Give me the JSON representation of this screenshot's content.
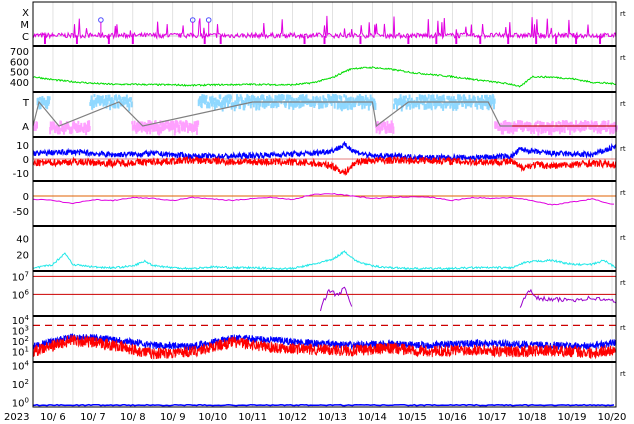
{
  "chart_data": {
    "type": "line",
    "x_labels": [
      "2023",
      "10/ 6",
      "10/ 7",
      "10/ 8",
      "10/ 9",
      "10/10",
      "10/11",
      "10/12",
      "10/13",
      "10/14",
      "10/15",
      "10/16",
      "10/17",
      "10/18",
      "10/19",
      "10/20"
    ],
    "x_range_days": [
      0,
      14.6
    ],
    "right_marker": "rt",
    "panels": [
      {
        "id": "xray",
        "ticks": [
          "X",
          "M",
          "C"
        ],
        "color": "#e000e0",
        "markers_days": [
          1.7,
          4.0,
          4.4
        ],
        "marker_color": "#5050ff"
      },
      {
        "id": "speed",
        "ticks": [
          "700",
          "600",
          "500",
          "400"
        ],
        "ylim": [
          300,
          750
        ],
        "color": "#00dd00",
        "series": [
          [
            0,
            450
          ],
          [
            0.5,
            420
          ],
          [
            1,
            400
          ],
          [
            1.5,
            385
          ],
          [
            2,
            375
          ],
          [
            2.5,
            375
          ],
          [
            3,
            372
          ],
          [
            3.5,
            370
          ],
          [
            4,
            365
          ],
          [
            4.5,
            370
          ],
          [
            5,
            372
          ],
          [
            5.5,
            375
          ],
          [
            6,
            372
          ],
          [
            6.5,
            370
          ],
          [
            7,
            390
          ],
          [
            7.5,
            440
          ],
          [
            7.8,
            500
          ],
          [
            8,
            530
          ],
          [
            8.5,
            540
          ],
          [
            9,
            520
          ],
          [
            9.5,
            490
          ],
          [
            10,
            470
          ],
          [
            10.5,
            450
          ],
          [
            11,
            425
          ],
          [
            11.5,
            400
          ],
          [
            12,
            375
          ],
          [
            12.2,
            350
          ],
          [
            12.5,
            450
          ],
          [
            13,
            445
          ],
          [
            13.5,
            430
          ],
          [
            14,
            395
          ],
          [
            14.6,
            380
          ]
        ]
      },
      {
        "id": "polarity",
        "ticks": [
          "T",
          "A"
        ],
        "colors": [
          "#8fd8ff",
          "#ffa0ff",
          "#808080"
        ],
        "steps": [
          [
            0,
            "A"
          ],
          [
            0.15,
            "T"
          ],
          [
            0.65,
            "A"
          ],
          [
            2.15,
            "T"
          ],
          [
            2.75,
            "A"
          ],
          [
            5.5,
            "T"
          ],
          [
            8.5,
            "T"
          ],
          [
            8.6,
            "A"
          ],
          [
            9.4,
            "T"
          ],
          [
            11.4,
            "T"
          ],
          [
            11.7,
            "A"
          ],
          [
            14.6,
            "A"
          ]
        ]
      },
      {
        "id": "imf",
        "ticks": [
          "10",
          "0",
          "-10"
        ],
        "ylim": [
          -15,
          15
        ],
        "series": [
          {
            "color": "#0000ff",
            "values": [
              [
                0,
                4
              ],
              [
                1,
                5
              ],
              [
                2,
                3
              ],
              [
                3,
                4
              ],
              [
                4,
                2
              ],
              [
                5,
                2
              ],
              [
                6,
                3
              ],
              [
                7,
                4
              ],
              [
                7.5,
                6
              ],
              [
                7.8,
                10
              ],
              [
                8.1,
                5
              ],
              [
                8.5,
                2
              ],
              [
                9,
                2
              ],
              [
                10,
                1
              ],
              [
                11,
                1
              ],
              [
                12,
                2
              ],
              [
                12.2,
                7
              ],
              [
                12.6,
                5
              ],
              [
                13,
                4
              ],
              [
                14,
                3
              ],
              [
                14.6,
                9
              ]
            ]
          },
          {
            "color": "#ff0000",
            "values": [
              [
                0,
                -3
              ],
              [
                1,
                -2
              ],
              [
                2,
                -3
              ],
              [
                3,
                -2
              ],
              [
                4,
                -1
              ],
              [
                5,
                -2
              ],
              [
                6,
                -2
              ],
              [
                7,
                -3
              ],
              [
                7.5,
                -5
              ],
              [
                7.8,
                -10
              ],
              [
                8.1,
                -2
              ],
              [
                8.5,
                -1
              ],
              [
                9,
                -1
              ],
              [
                10,
                -1
              ],
              [
                11,
                -2
              ],
              [
                12,
                -2
              ],
              [
                12.2,
                -6
              ],
              [
                12.6,
                -4
              ],
              [
                13,
                -5
              ],
              [
                14,
                -3
              ],
              [
                14.6,
                -4
              ]
            ]
          }
        ]
      },
      {
        "id": "angle",
        "ticks": [
          "0",
          "-50"
        ],
        "ylim": [
          -90,
          30
        ],
        "color": "#e000e0",
        "ref_color": "#e06000",
        "series": [
          [
            0,
            -10
          ],
          [
            0.5,
            -15
          ],
          [
            1,
            -25
          ],
          [
            1.5,
            -12
          ],
          [
            2,
            -15
          ],
          [
            2.5,
            -5
          ],
          [
            3,
            -8
          ],
          [
            3.5,
            -15
          ],
          [
            4,
            -5
          ],
          [
            4.5,
            -10
          ],
          [
            5,
            -15
          ],
          [
            5.5,
            -8
          ],
          [
            6,
            -5
          ],
          [
            6.5,
            -12
          ],
          [
            7,
            5
          ],
          [
            7.5,
            8
          ],
          [
            8,
            0
          ],
          [
            8.5,
            -8
          ],
          [
            9,
            -5
          ],
          [
            9.5,
            -2
          ],
          [
            10,
            -5
          ],
          [
            10.5,
            -15
          ],
          [
            11,
            -5
          ],
          [
            11.5,
            -8
          ],
          [
            12,
            -5
          ],
          [
            12.5,
            -15
          ],
          [
            13,
            -30
          ],
          [
            13.5,
            -20
          ],
          [
            14,
            -10
          ],
          [
            14.6,
            -30
          ]
        ]
      },
      {
        "id": "density",
        "ticks": [
          "40",
          "20"
        ],
        "ylim": [
          0,
          55
        ],
        "color": "#20e8e8",
        "series": [
          [
            0,
            3
          ],
          [
            0.5,
            8
          ],
          [
            0.8,
            22
          ],
          [
            1,
            8
          ],
          [
            1.5,
            5
          ],
          [
            2,
            4
          ],
          [
            2.5,
            6
          ],
          [
            2.8,
            12
          ],
          [
            3,
            7
          ],
          [
            3.5,
            4
          ],
          [
            4,
            3
          ],
          [
            4.5,
            5
          ],
          [
            5,
            4
          ],
          [
            5.5,
            4
          ],
          [
            6,
            3
          ],
          [
            6.5,
            3
          ],
          [
            7,
            8
          ],
          [
            7.5,
            14
          ],
          [
            7.8,
            24
          ],
          [
            8.1,
            12
          ],
          [
            8.5,
            6
          ],
          [
            9,
            4
          ],
          [
            9.5,
            3
          ],
          [
            10,
            3
          ],
          [
            10.5,
            3
          ],
          [
            11,
            4
          ],
          [
            11.5,
            4
          ],
          [
            12,
            4
          ],
          [
            12.3,
            10
          ],
          [
            12.6,
            12
          ],
          [
            13,
            13
          ],
          [
            13.5,
            8
          ],
          [
            14,
            8
          ],
          [
            14.3,
            13
          ],
          [
            14.6,
            4
          ]
        ]
      },
      {
        "id": "temperature",
        "ticks": [
          "10^7",
          "10^6"
        ],
        "ylim_log": [
          4.8,
          7.3
        ],
        "color": "#9900cc",
        "ref_color": "#cc0000",
        "series": [
          [
            7.2,
            5.2
          ],
          [
            7.4,
            6.2
          ],
          [
            7.6,
            6.0
          ],
          [
            7.8,
            6.3
          ],
          [
            8,
            5.3
          ],
          [
            12.2,
            5.3
          ],
          [
            12.4,
            6.3
          ],
          [
            12.6,
            5.8
          ],
          [
            13,
            5.7
          ],
          [
            13.5,
            5.7
          ],
          [
            14,
            5.8
          ],
          [
            14.6,
            5.6
          ]
        ]
      },
      {
        "id": "flux",
        "ticks": [
          "10^4",
          "10^3",
          "10^2",
          "10^1"
        ],
        "ylim_log": [
          0,
          4.4
        ],
        "ref_color": "#cc0000",
        "series": [
          {
            "color": "#0000ff",
            "values": [
              [
                0,
                1.5
              ],
              [
                1,
                2.4
              ],
              [
                2,
                2.2
              ],
              [
                3,
                1.6
              ],
              [
                4,
                1.5
              ],
              [
                5,
                2.3
              ],
              [
                6,
                2.1
              ],
              [
                7,
                1.8
              ],
              [
                8,
                1.6
              ],
              [
                9,
                1.7
              ],
              [
                10,
                1.6
              ],
              [
                11,
                1.8
              ],
              [
                12,
                1.7
              ],
              [
                13,
                1.6
              ],
              [
                14,
                1.5
              ],
              [
                14.6,
                1.9
              ]
            ]
          },
          {
            "color": "#ff0000",
            "values": [
              [
                0,
                1.0
              ],
              [
                1,
                2.1
              ],
              [
                2,
                1.6
              ],
              [
                3,
                0.8
              ],
              [
                4,
                1.0
              ],
              [
                5,
                1.9
              ],
              [
                6,
                1.4
              ],
              [
                7,
                1.2
              ],
              [
                8,
                1.1
              ],
              [
                9,
                1.3
              ],
              [
                10,
                1.0
              ],
              [
                11,
                1.2
              ],
              [
                12,
                1.0
              ],
              [
                13,
                1.1
              ],
              [
                14,
                0.9
              ],
              [
                14.6,
                1.2
              ]
            ]
          }
        ]
      },
      {
        "id": "electron",
        "ticks": [
          "10^4",
          "10^2",
          "10^0"
        ],
        "ylim_log": [
          -0.5,
          4.4
        ],
        "color": "#0000ff",
        "series": [
          [
            0,
            -0.3
          ],
          [
            14.6,
            -0.3
          ]
        ]
      }
    ]
  }
}
